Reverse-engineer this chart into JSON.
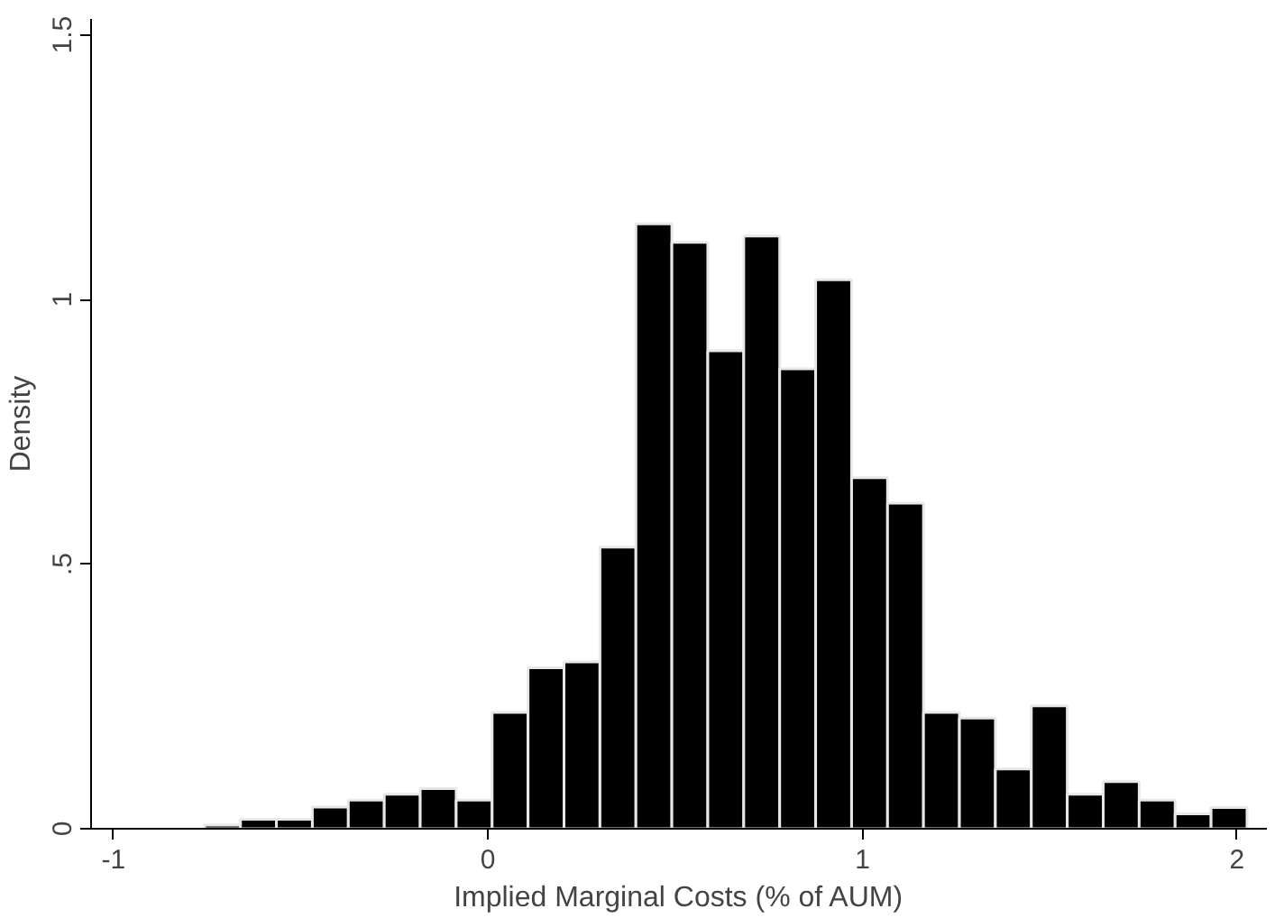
{
  "chart_data": {
    "type": "histogram",
    "xlabel": "Implied Marginal Costs (% of AUM)",
    "ylabel": "Density",
    "bins": [
      -0.757,
      -0.661,
      -0.565,
      -0.469,
      -0.373,
      -0.277,
      -0.181,
      -0.085,
      0.011,
      0.107,
      0.203,
      0.299,
      0.395,
      0.491,
      0.587,
      0.683,
      0.779,
      0.875,
      0.971,
      1.067,
      1.163,
      1.259,
      1.355,
      1.451,
      1.547,
      1.643,
      1.739,
      1.835,
      1.931,
      2.027
    ],
    "values": [
      0.007,
      0.018,
      0.018,
      0.041,
      0.054,
      0.065,
      0.076,
      0.054,
      0.22,
      0.304,
      0.315,
      0.532,
      1.143,
      1.108,
      0.903,
      1.12,
      0.869,
      1.037,
      0.663,
      0.615,
      0.22,
      0.209,
      0.113,
      0.232,
      0.065,
      0.089,
      0.054,
      0.028,
      0.04
    ],
    "color": "#000000",
    "xlim": [
      -1.06,
      2.08
    ],
    "ylim": [
      0,
      1.53
    ],
    "xticks": [
      -1,
      0,
      1,
      2
    ],
    "yticks": [
      0,
      {
        "value": 0.5,
        "label": ".5"
      },
      1,
      1.5
    ],
    "grid": false
  }
}
